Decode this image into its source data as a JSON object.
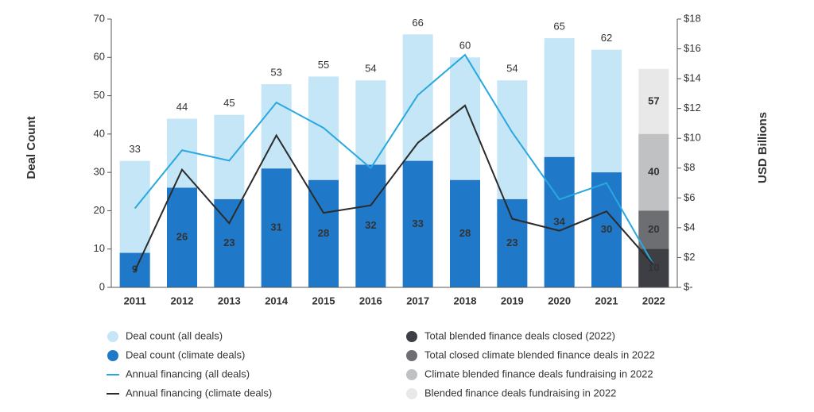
{
  "chart_data": {
    "type": "bar-line",
    "y_label": "Deal Count",
    "y2_label": "USD Billions",
    "categories": [
      "2011",
      "2012",
      "2013",
      "2014",
      "2015",
      "2016",
      "2017",
      "2018",
      "2019",
      "2020",
      "2021",
      "2022"
    ],
    "ylim": [
      0,
      70
    ],
    "yticks": [
      0,
      10,
      20,
      30,
      40,
      50,
      60,
      70
    ],
    "y2lim": [
      0,
      18
    ],
    "y2ticks": [
      {
        "value": 0,
        "label": "$-"
      },
      {
        "value": 2,
        "label": "$2"
      },
      {
        "value": 4,
        "label": "$4"
      },
      {
        "value": 6,
        "label": "$6"
      },
      {
        "value": 8,
        "label": "$8"
      },
      {
        "value": 10,
        "label": "$10"
      },
      {
        "value": 12,
        "label": "$12"
      },
      {
        "value": 14,
        "label": "$14"
      },
      {
        "value": 16,
        "label": "$16"
      },
      {
        "value": 18,
        "label": "$18"
      }
    ],
    "series": [
      {
        "name": "Deal count (all deals)",
        "type": "bar",
        "color": "#c5e6f7",
        "values": [
          33,
          44,
          45,
          53,
          55,
          54,
          66,
          60,
          54,
          65,
          62,
          null
        ]
      },
      {
        "name": "Deal count (climate deals)",
        "type": "bar",
        "color": "#1f78c8",
        "values": [
          9,
          26,
          23,
          31,
          28,
          32,
          33,
          28,
          23,
          34,
          30,
          null
        ]
      },
      {
        "name": "Annual financing (all deals)",
        "type": "line",
        "axis": "y2",
        "color": "#29a8e0",
        "values": [
          5.3,
          9.2,
          8.5,
          12.4,
          10.7,
          8.0,
          12.9,
          15.6,
          10.4,
          5.9,
          7.0,
          1.5
        ]
      },
      {
        "name": "Annual financing (climate deals)",
        "type": "line",
        "axis": "y2",
        "color": "#2b2b2b",
        "values": [
          1.1,
          7.9,
          4.3,
          10.2,
          5.0,
          5.5,
          9.7,
          12.2,
          4.6,
          3.8,
          5.1,
          1.5
        ]
      },
      {
        "name": "Total blended finance deals closed (2022)",
        "type": "bar",
        "color": "#3d3f45",
        "values": [
          null,
          null,
          null,
          null,
          null,
          null,
          null,
          null,
          null,
          null,
          null,
          10
        ]
      },
      {
        "name": "Total closed climate blended finance deals in 2022",
        "type": "bar",
        "color": "#6d6e72",
        "values": [
          null,
          null,
          null,
          null,
          null,
          null,
          null,
          null,
          null,
          null,
          null,
          20
        ]
      },
      {
        "name": "Climate blended finance deals fundraising in 2022",
        "type": "bar",
        "color": "#bfc1c3",
        "values": [
          null,
          null,
          null,
          null,
          null,
          null,
          null,
          null,
          null,
          null,
          null,
          40
        ]
      },
      {
        "name": "Blended finance deals fundraising in 2022",
        "type": "bar",
        "color": "#e8e8e8",
        "values": [
          null,
          null,
          null,
          null,
          null,
          null,
          null,
          null,
          null,
          null,
          null,
          57
        ]
      }
    ]
  }
}
